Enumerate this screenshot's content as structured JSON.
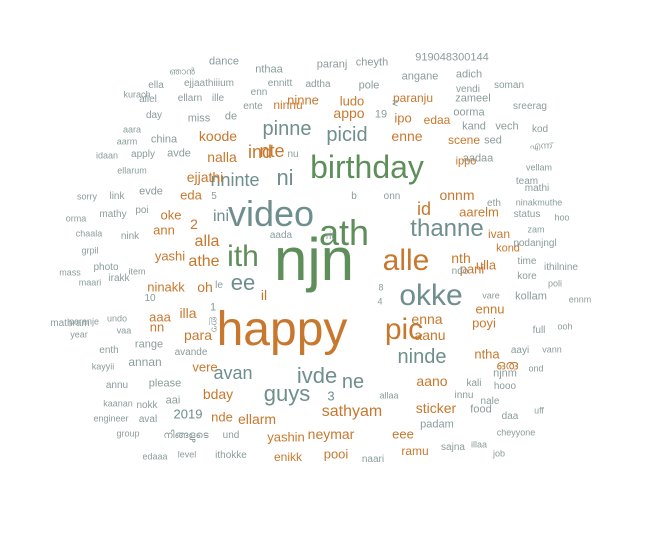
{
  "colors": {
    "orange": "#c8782e",
    "green": "#5e8f5a",
    "slate": "#6f8e8e",
    "grey": "#8c9c9c"
  },
  "words": [
    {
      "text": "njn",
      "color": "green"
    },
    {
      "text": "happy",
      "color": "orange"
    },
    {
      "text": "ath",
      "color": "green"
    },
    {
      "text": "video",
      "color": "slate"
    },
    {
      "text": "birthday",
      "color": "green"
    },
    {
      "text": "alle",
      "color": "orange"
    },
    {
      "text": "okke",
      "color": "slate"
    },
    {
      "text": "pic",
      "color": "orange"
    },
    {
      "text": "ith",
      "color": "green"
    },
    {
      "text": "thanne",
      "color": "slate"
    },
    {
      "text": "guys",
      "color": "slate"
    },
    {
      "text": "ivde",
      "color": "slate"
    },
    {
      "text": "ee",
      "color": "slate"
    },
    {
      "text": "ni",
      "color": "slate"
    },
    {
      "text": "ninde",
      "color": "slate"
    },
    {
      "text": "pinne",
      "color": "slate"
    },
    {
      "text": "picid",
      "color": "slate"
    },
    {
      "text": "nte",
      "color": "orange"
    },
    {
      "text": "ne",
      "color": "slate"
    },
    {
      "text": "avan",
      "color": "slate"
    },
    {
      "text": "nalla",
      "color": "orange"
    },
    {
      "text": "ind",
      "color": "orange"
    },
    {
      "text": "sathyam",
      "color": "orange"
    },
    {
      "text": "id",
      "color": "orange"
    },
    {
      "text": "alla",
      "color": "orange"
    },
    {
      "text": "athe",
      "color": "orange"
    },
    {
      "text": "nth",
      "color": "orange"
    },
    {
      "text": "nninte",
      "color": "slate"
    },
    {
      "text": "neymar",
      "color": "orange"
    },
    {
      "text": "sticker",
      "color": "orange"
    },
    {
      "text": "aano",
      "color": "orange"
    },
    {
      "text": "aanu",
      "color": "orange"
    },
    {
      "text": "ellarm",
      "color": "orange"
    },
    {
      "text": "enna",
      "color": "orange"
    },
    {
      "text": "para",
      "color": "orange"
    },
    {
      "text": "appo",
      "color": "orange"
    },
    {
      "text": "koode",
      "color": "orange"
    },
    {
      "text": "oh",
      "color": "orange"
    },
    {
      "text": "ini",
      "color": "slate"
    },
    {
      "text": "il",
      "color": "orange"
    },
    {
      "text": "onnm",
      "color": "orange"
    },
    {
      "text": "enne",
      "color": "orange"
    },
    {
      "text": "ninne",
      "color": "orange"
    },
    {
      "text": "illa",
      "color": "orange"
    },
    {
      "text": "yashin",
      "color": "orange"
    },
    {
      "text": "eee",
      "color": "orange"
    },
    {
      "text": "pooi",
      "color": "orange"
    },
    {
      "text": "bday",
      "color": "orange"
    },
    {
      "text": "ntha",
      "color": "orange"
    },
    {
      "text": "poyi",
      "color": "orange"
    },
    {
      "text": "aarelm",
      "color": "orange"
    },
    {
      "text": "pani",
      "color": "orange"
    },
    {
      "text": "ennu",
      "color": "orange"
    },
    {
      "text": "ninakk",
      "color": "orange"
    },
    {
      "text": "yashi",
      "color": "orange"
    },
    {
      "text": "ejjathi",
      "color": "orange"
    },
    {
      "text": "eda",
      "color": "orange"
    },
    {
      "text": "vere",
      "color": "orange"
    },
    {
      "text": "nde",
      "color": "orange"
    },
    {
      "text": "aaa",
      "color": "orange"
    },
    {
      "text": "ann",
      "color": "orange"
    },
    {
      "text": "ulla",
      "color": "orange"
    },
    {
      "text": "oke",
      "color": "orange"
    },
    {
      "text": "ipo",
      "color": "orange"
    },
    {
      "text": "ludo",
      "color": "orange"
    },
    {
      "text": "ninnu",
      "color": "orange"
    },
    {
      "text": "2",
      "color": "orange"
    },
    {
      "text": "3",
      "color": "slate"
    },
    {
      "text": "enikk",
      "color": "orange"
    },
    {
      "text": "ivan",
      "color": "orange"
    },
    {
      "text": "kond",
      "color": "orange"
    },
    {
      "text": "edaa",
      "color": "orange"
    },
    {
      "text": "paranju",
      "color": "orange"
    },
    {
      "text": "ippo",
      "color": "orange"
    },
    {
      "text": "scene",
      "color": "orange"
    },
    {
      "text": "ramu",
      "color": "orange"
    },
    {
      "text": "2019",
      "color": "slate"
    },
    {
      "text": "nn",
      "color": "orange"
    },
    {
      "text": "ഒരു",
      "color": "orange"
    },
    {
      "text": "njnm",
      "color": "grey"
    },
    {
      "text": "dance",
      "color": "grey"
    },
    {
      "text": "paranj",
      "color": "grey"
    },
    {
      "text": "cheyth",
      "color": "grey"
    },
    {
      "text": "919048300144",
      "color": "grey"
    },
    {
      "text": "ഞാൻ",
      "color": "grey"
    },
    {
      "text": "nthaa",
      "color": "grey"
    },
    {
      "text": "angane",
      "color": "grey"
    },
    {
      "text": "adich",
      "color": "grey"
    },
    {
      "text": "ella",
      "color": "grey"
    },
    {
      "text": "ejjaathiiium",
      "color": "grey"
    },
    {
      "text": "ennitt",
      "color": "grey"
    },
    {
      "text": "adtha",
      "color": "grey"
    },
    {
      "text": "pole",
      "color": "grey"
    },
    {
      "text": "soman",
      "color": "grey"
    },
    {
      "text": "allel",
      "color": "grey"
    },
    {
      "text": "ellarn",
      "color": "grey"
    },
    {
      "text": "ille",
      "color": "grey"
    },
    {
      "text": "enn",
      "color": "grey"
    },
    {
      "text": "zameel",
      "color": "grey"
    },
    {
      "text": "sreerag",
      "color": "grey"
    },
    {
      "text": "day",
      "color": "grey"
    },
    {
      "text": "miss",
      "color": "grey"
    },
    {
      "text": "de",
      "color": "grey"
    },
    {
      "text": "ente",
      "color": "grey"
    },
    {
      "text": "19",
      "color": "grey"
    },
    {
      "text": "oorma",
      "color": "grey"
    },
    {
      "text": "aara",
      "color": "grey"
    },
    {
      "text": "kand",
      "color": "grey"
    },
    {
      "text": "vech",
      "color": "grey"
    },
    {
      "text": "kod",
      "color": "grey"
    },
    {
      "text": "aarm",
      "color": "grey"
    },
    {
      "text": "china",
      "color": "grey"
    },
    {
      "text": "sed",
      "color": "grey"
    },
    {
      "text": "idaan",
      "color": "grey"
    },
    {
      "text": "apply",
      "color": "grey"
    },
    {
      "text": "nu",
      "color": "grey"
    },
    {
      "text": "എന്ന്",
      "color": "grey"
    },
    {
      "text": "ellarum",
      "color": "grey"
    },
    {
      "text": "avde",
      "color": "grey"
    },
    {
      "text": "aadaa",
      "color": "grey"
    },
    {
      "text": "vellam",
      "color": "grey"
    },
    {
      "text": "sorry",
      "color": "grey"
    },
    {
      "text": "link",
      "color": "grey"
    },
    {
      "text": "evde",
      "color": "grey"
    },
    {
      "text": "5",
      "color": "grey"
    },
    {
      "text": "onn",
      "color": "grey"
    },
    {
      "text": "team",
      "color": "grey"
    },
    {
      "text": "mathi",
      "color": "grey"
    },
    {
      "text": "poi",
      "color": "grey"
    },
    {
      "text": "b",
      "color": "grey"
    },
    {
      "text": "eth",
      "color": "grey"
    },
    {
      "text": "ninakmuthe",
      "color": "grey"
    },
    {
      "text": "orma",
      "color": "grey"
    },
    {
      "text": "mathy",
      "color": "grey"
    },
    {
      "text": "status",
      "color": "grey"
    },
    {
      "text": "hoo",
      "color": "grey"
    },
    {
      "text": "zam",
      "color": "grey"
    },
    {
      "text": "chaala",
      "color": "grey"
    },
    {
      "text": "nink",
      "color": "grey"
    },
    {
      "text": "aada",
      "color": "grey"
    },
    {
      "text": "rit",
      "color": "grey"
    },
    {
      "text": "podanjngl",
      "color": "grey"
    },
    {
      "text": "grpil",
      "color": "grey"
    },
    {
      "text": "mass",
      "color": "grey"
    },
    {
      "text": "photo",
      "color": "grey"
    },
    {
      "text": "item",
      "color": "grey"
    },
    {
      "text": "ndo",
      "color": "grey"
    },
    {
      "text": "time",
      "color": "grey"
    },
    {
      "text": "ithilnine",
      "color": "grey"
    },
    {
      "text": "kore",
      "color": "grey"
    },
    {
      "text": "poli",
      "color": "grey"
    },
    {
      "text": "maari",
      "color": "grey"
    },
    {
      "text": "irakk",
      "color": "grey"
    },
    {
      "text": "le",
      "color": "grey"
    },
    {
      "text": "8",
      "color": "grey"
    },
    {
      "text": "4",
      "color": "grey"
    },
    {
      "text": "vare",
      "color": "grey"
    },
    {
      "text": "kollam",
      "color": "grey"
    },
    {
      "text": "ennm",
      "color": "grey"
    },
    {
      "text": "mathram",
      "color": "grey"
    },
    {
      "text": "10",
      "color": "grey"
    },
    {
      "text": "year",
      "color": "grey"
    },
    {
      "text": "vaa",
      "color": "grey"
    },
    {
      "text": "1",
      "color": "grey"
    },
    {
      "text": "full",
      "color": "grey"
    },
    {
      "text": "ooh",
      "color": "grey"
    },
    {
      "text": "paranje",
      "color": "grey"
    },
    {
      "text": "ഈ",
      "color": "grey"
    },
    {
      "text": "enth",
      "color": "grey"
    },
    {
      "text": "range",
      "color": "grey"
    },
    {
      "text": "aayi",
      "color": "grey"
    },
    {
      "text": "vann",
      "color": "grey"
    },
    {
      "text": "annan",
      "color": "grey"
    },
    {
      "text": "avande",
      "color": "grey"
    },
    {
      "text": "kayyii",
      "color": "grey"
    },
    {
      "text": "ond",
      "color": "grey"
    },
    {
      "text": "annu",
      "color": "grey"
    },
    {
      "text": "please",
      "color": "grey"
    },
    {
      "text": "kali",
      "color": "grey"
    },
    {
      "text": "hooo",
      "color": "grey"
    },
    {
      "text": "aai",
      "color": "grey"
    },
    {
      "text": "allaa",
      "color": "grey"
    },
    {
      "text": "innu",
      "color": "grey"
    },
    {
      "text": "kaanan",
      "color": "grey"
    },
    {
      "text": "nokk",
      "color": "grey"
    },
    {
      "text": "nale",
      "color": "grey"
    },
    {
      "text": "engineer",
      "color": "grey"
    },
    {
      "text": "aval",
      "color": "grey"
    },
    {
      "text": "food",
      "color": "grey"
    },
    {
      "text": "daa",
      "color": "grey"
    },
    {
      "text": "uff",
      "color": "grey"
    },
    {
      "text": "group",
      "color": "grey"
    },
    {
      "text": "നിങ്ങളുടെ",
      "color": "grey"
    },
    {
      "text": "und",
      "color": "grey"
    },
    {
      "text": "padam",
      "color": "grey"
    },
    {
      "text": "cheyyone",
      "color": "grey"
    },
    {
      "text": "sajna",
      "color": "grey"
    },
    {
      "text": "illaa",
      "color": "grey"
    },
    {
      "text": "edaaa",
      "color": "grey"
    },
    {
      "text": "level",
      "color": "grey"
    },
    {
      "text": "ithokke",
      "color": "grey"
    },
    {
      "text": "naari",
      "color": "grey"
    },
    {
      "text": "job",
      "color": "grey"
    },
    {
      "text": "undo",
      "color": "grey"
    },
    {
      "text": "kurach",
      "color": "grey"
    },
    {
      "text": "iv",
      "color": "grey"
    },
    {
      "text": "vendi",
      "color": "grey"
    }
  ]
}
